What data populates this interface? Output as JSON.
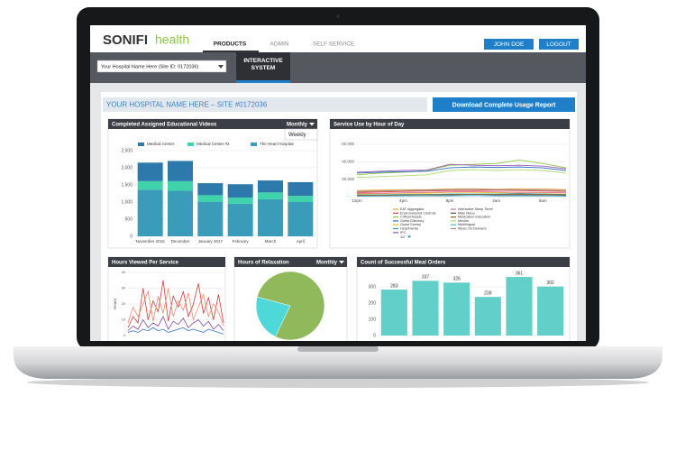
{
  "header": {
    "logo": "SONIFI",
    "logo_suffix": "health",
    "nav": [
      "PRODUCTS",
      "ADMIN",
      "SELF SERVICE"
    ],
    "user": "JOHN DOE",
    "logout": "LOGOUT"
  },
  "toolbar": {
    "site_select": "Your Hospital Name Here (Site ID: 0172036)",
    "tab": "INTERACTIVE SYSTEM"
  },
  "site_title": "YOUR HOSPITAL NAME HERE – SITE #0172036",
  "download_button": "Download Complete Usage Report",
  "charts": [
    {
      "type": "bar",
      "title": "Completed Assigned Educational Videos",
      "dropdown": "Monthly",
      "dropdown_option": "Weekly",
      "categories": [
        "November 2016",
        "December",
        "January 2017",
        "February",
        "March",
        "April"
      ],
      "series": [
        {
          "name": "Medical Center",
          "color": "#2d79ac",
          "values": [
            540,
            590,
            350,
            390,
            350,
            400
          ]
        },
        {
          "name": "Medical Center #2",
          "color": "#40d3ab",
          "values": [
            250,
            280,
            200,
            180,
            200,
            180
          ]
        },
        {
          "name": "The Heart Hospital",
          "color": "#3b9cba",
          "values": [
            1360,
            1330,
            1000,
            950,
            1080,
            1000
          ]
        }
      ],
      "ylim": [
        0,
        2500
      ],
      "yticks": [
        0,
        500,
        {
          "value": 1000,
          "label": "1,000"
        },
        {
          "value": 1500,
          "label": "1,500"
        },
        {
          "value": 2000,
          "label": "2,000"
        },
        {
          "value": 2500,
          "label": "2,500"
        }
      ]
    },
    {
      "type": "line",
      "title": "Service Use by Hour of Day",
      "categories": [
        "12pm",
        null,
        "4pm",
        null,
        "8pm",
        null,
        "4am",
        null,
        "8am",
        null
      ],
      "series": [
        {
          "name": "EAT Aggregator",
          "color": "#f0a030",
          "values": [
            7000,
            7500,
            8000,
            8000,
            9000,
            9000,
            8500,
            9000,
            9000,
            8000
          ]
        },
        {
          "name": "Environmental Controls",
          "color": "#e04040",
          "values": [
            5000,
            5500,
            6000,
            6500,
            7000,
            7000,
            7500,
            7000,
            6500,
            6000
          ]
        },
        {
          "name": "Critical Assets",
          "color": "#8cc63f",
          "values": [
            25000,
            27000,
            28000,
            30000,
            36000,
            37000,
            38000,
            42000,
            38000,
            33000
          ]
        },
        {
          "name": "Guest Directory",
          "color": "#3070c0",
          "values": [
            27000,
            28000,
            28500,
            29000,
            33000,
            34000,
            33500,
            34000,
            33000,
            30000
          ]
        },
        {
          "name": "Guest Survey",
          "color": "#e8c020",
          "values": [
            3000,
            3500,
            4000,
            4000,
            5000,
            5000,
            4500,
            5000,
            4500,
            4000
          ]
        },
        {
          "name": "Help/Family",
          "color": "#20a0a0",
          "values": [
            2000,
            2000,
            2500,
            2500,
            3000,
            3000,
            3000,
            3500,
            3000,
            2500
          ]
        },
        {
          "name": "IPC",
          "color": "#9a5ab8",
          "values": [
            28000,
            29000,
            30000,
            30500,
            37000,
            36000,
            35500,
            36000,
            35000,
            32000
          ]
        },
        {
          "name": "Interactive Sleep Timer",
          "color": "#e070a0",
          "values": [
            4000,
            4000,
            4500,
            5000,
            5500,
            6000,
            5500,
            5000,
            5000,
            4500
          ]
        },
        {
          "name": "Main Menu",
          "color": "#505050",
          "values": [
            1000,
            1500,
            1500,
            2000,
            2000,
            2500,
            2000,
            2000,
            2000,
            1500
          ]
        },
        {
          "name": "Medication Education",
          "color": "#a06030",
          "values": [
            1500,
            1500,
            2000,
            2000,
            2500,
            2500,
            2500,
            3000,
            2500,
            2000
          ]
        },
        {
          "name": "Movies",
          "color": "#b0d870",
          "values": [
            22000,
            23000,
            24000,
            25000,
            30000,
            31000,
            30000,
            31000,
            30000,
            27000
          ]
        },
        {
          "name": "Multilingual",
          "color": "#40c0e0",
          "values": [
            500,
            500,
            1000,
            1000,
            1000,
            1500,
            1000,
            1000,
            1000,
            500
          ]
        },
        {
          "name": "Music On Demand",
          "color": "#909090",
          "values": [
            6000,
            6500,
            7000,
            7500,
            8000,
            8500,
            8000,
            8000,
            7500,
            7000
          ]
        }
      ],
      "legend_page": "1/2",
      "ylim": [
        0,
        60000
      ],
      "yticks": [
        {
          "value": 20000,
          "label": "20,000"
        },
        {
          "value": 40000,
          "label": "40,000"
        },
        {
          "value": 60000,
          "label": "60,000"
        }
      ]
    },
    {
      "type": "line",
      "title": "Hours Viewed Per Service",
      "y_label": "Hours",
      "series": [
        {
          "color": "#d83a3a",
          "values": [
            5,
            12,
            8,
            30,
            10,
            22,
            15,
            35,
            9,
            25,
            18,
            28,
            12,
            20,
            33,
            14,
            24,
            10,
            26,
            8
          ]
        },
        {
          "color": "#f08a70",
          "values": [
            8,
            18,
            12,
            20,
            28,
            9,
            25,
            14,
            30,
            12,
            22,
            16,
            27,
            10,
            18,
            26,
            12,
            20,
            15,
            6
          ]
        },
        {
          "color": "#8a4aa8",
          "values": [
            3,
            6,
            4,
            10,
            5,
            8,
            6,
            12,
            4,
            9,
            7,
            11,
            5,
            8,
            10,
            6,
            9,
            4,
            7,
            3
          ]
        },
        {
          "color": "#3070c0",
          "values": [
            2,
            3,
            2,
            4,
            3,
            5,
            3,
            4,
            2,
            3,
            4,
            5,
            3,
            4,
            3,
            2,
            4,
            3,
            2,
            1
          ]
        }
      ],
      "ylim": [
        0,
        40
      ],
      "yticks": [
        0,
        10,
        20,
        30,
        40
      ]
    },
    {
      "type": "pie",
      "title": "Hours of Relaxation",
      "dropdown": "Monthly",
      "values": [
        78,
        22
      ],
      "colors": [
        "#8fb95a",
        "#4fd8d8"
      ]
    },
    {
      "type": "bar",
      "title": "Count of Successful Meal Orders",
      "values": [
        283,
        337,
        326,
        238,
        361,
        302
      ],
      "color": "#62d0c8",
      "ylim": [
        0,
        400
      ],
      "yticks": [
        0,
        100,
        200,
        300
      ]
    }
  ]
}
